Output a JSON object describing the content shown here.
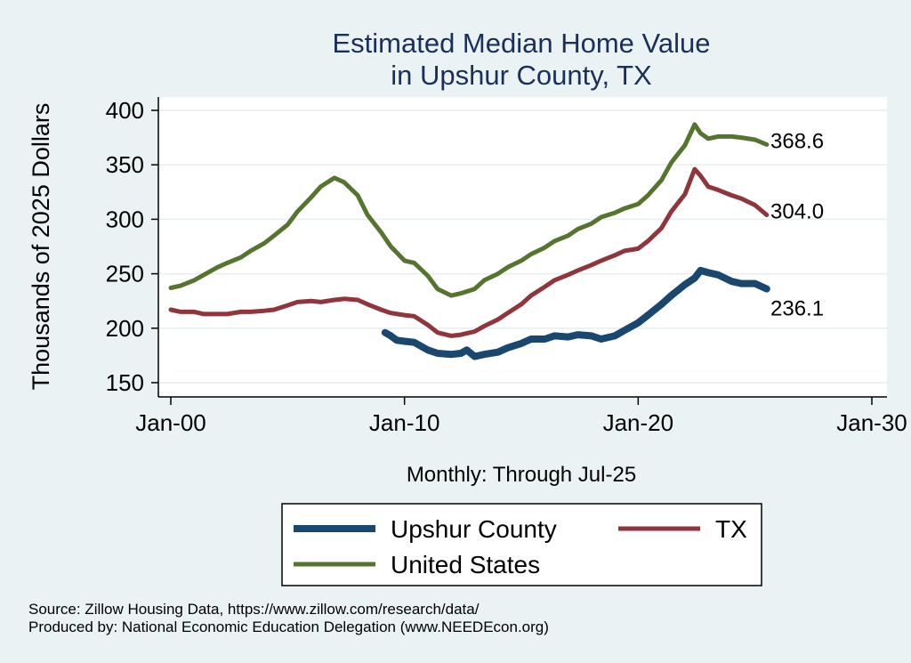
{
  "chart_data": {
    "type": "line",
    "title": [
      "Estimated Median Home Value",
      "in Upshur County, TX"
    ],
    "xlabel": "Monthly: Through Jul-25",
    "ylabel": "Thousands of 2025 Dollars",
    "x_ticks": [
      {
        "label": "Jan-00",
        "value": "2000-01"
      },
      {
        "label": "Jan-10",
        "value": "2010-01"
      },
      {
        "label": "Jan-20",
        "value": "2020-01"
      },
      {
        "label": "Jan-30",
        "value": "2030-01"
      }
    ],
    "y_ticks": [
      150,
      200,
      250,
      300,
      350,
      400
    ],
    "ylim": [
      140,
      410
    ],
    "xlim": [
      "2000-01",
      "2030-01"
    ],
    "grid": true,
    "legend_position": "bottom",
    "series": [
      {
        "name": "Upshur County",
        "color": "#1a476f",
        "last_label": "236.1",
        "points": [
          [
            "2009-03",
            196
          ],
          [
            "2009-06",
            193
          ],
          [
            "2009-09",
            189
          ],
          [
            "2010-01",
            188
          ],
          [
            "2010-06",
            187
          ],
          [
            "2011-01",
            180
          ],
          [
            "2011-06",
            177
          ],
          [
            "2012-01",
            176
          ],
          [
            "2012-06",
            177
          ],
          [
            "2012-09",
            180
          ],
          [
            "2013-01",
            174
          ],
          [
            "2013-06",
            176
          ],
          [
            "2014-01",
            178
          ],
          [
            "2014-06",
            182
          ],
          [
            "2015-01",
            186
          ],
          [
            "2015-06",
            190
          ],
          [
            "2016-01",
            190
          ],
          [
            "2016-06",
            193
          ],
          [
            "2017-01",
            192
          ],
          [
            "2017-06",
            194
          ],
          [
            "2018-01",
            193
          ],
          [
            "2018-06",
            190
          ],
          [
            "2019-01",
            193
          ],
          [
            "2019-06",
            198
          ],
          [
            "2020-01",
            205
          ],
          [
            "2020-06",
            212
          ],
          [
            "2021-01",
            222
          ],
          [
            "2021-06",
            230
          ],
          [
            "2022-01",
            240
          ],
          [
            "2022-06",
            246
          ],
          [
            "2022-09",
            253
          ],
          [
            "2023-01",
            251
          ],
          [
            "2023-06",
            249
          ],
          [
            "2024-01",
            243
          ],
          [
            "2024-06",
            241
          ],
          [
            "2025-01",
            241
          ],
          [
            "2025-07",
            236.1
          ]
        ]
      },
      {
        "name": "TX",
        "color": "#90353b",
        "last_label": "304.0",
        "points": [
          [
            "2000-01",
            217
          ],
          [
            "2000-06",
            215
          ],
          [
            "2001-01",
            215
          ],
          [
            "2001-06",
            213
          ],
          [
            "2002-01",
            213
          ],
          [
            "2002-06",
            213
          ],
          [
            "2003-01",
            215
          ],
          [
            "2003-06",
            215
          ],
          [
            "2004-01",
            216
          ],
          [
            "2004-06",
            217
          ],
          [
            "2005-01",
            221
          ],
          [
            "2005-06",
            224
          ],
          [
            "2006-01",
            225
          ],
          [
            "2006-06",
            224
          ],
          [
            "2007-01",
            226
          ],
          [
            "2007-06",
            227
          ],
          [
            "2008-01",
            226
          ],
          [
            "2008-06",
            222
          ],
          [
            "2009-01",
            217
          ],
          [
            "2009-06",
            214
          ],
          [
            "2010-01",
            212
          ],
          [
            "2010-06",
            211
          ],
          [
            "2011-01",
            203
          ],
          [
            "2011-06",
            196
          ],
          [
            "2012-01",
            193
          ],
          [
            "2012-06",
            194
          ],
          [
            "2013-01",
            197
          ],
          [
            "2013-06",
            202
          ],
          [
            "2014-01",
            208
          ],
          [
            "2014-06",
            214
          ],
          [
            "2015-01",
            222
          ],
          [
            "2015-06",
            230
          ],
          [
            "2016-01",
            238
          ],
          [
            "2016-06",
            244
          ],
          [
            "2017-01",
            249
          ],
          [
            "2017-06",
            253
          ],
          [
            "2018-01",
            258
          ],
          [
            "2018-06",
            262
          ],
          [
            "2019-01",
            267
          ],
          [
            "2019-06",
            271
          ],
          [
            "2020-01",
            273
          ],
          [
            "2020-06",
            280
          ],
          [
            "2021-01",
            292
          ],
          [
            "2021-06",
            307
          ],
          [
            "2022-01",
            323
          ],
          [
            "2022-06",
            346
          ],
          [
            "2022-09",
            340
          ],
          [
            "2023-01",
            330
          ],
          [
            "2023-06",
            327
          ],
          [
            "2024-01",
            322
          ],
          [
            "2024-06",
            319
          ],
          [
            "2025-01",
            313
          ],
          [
            "2025-07",
            304.0
          ]
        ]
      },
      {
        "name": "United States",
        "color": "#55752f",
        "last_label": "368.6",
        "points": [
          [
            "2000-01",
            237
          ],
          [
            "2000-06",
            239
          ],
          [
            "2001-01",
            244
          ],
          [
            "2001-06",
            249
          ],
          [
            "2002-01",
            256
          ],
          [
            "2002-06",
            260
          ],
          [
            "2003-01",
            265
          ],
          [
            "2003-06",
            271
          ],
          [
            "2004-01",
            278
          ],
          [
            "2004-06",
            285
          ],
          [
            "2005-01",
            295
          ],
          [
            "2005-06",
            307
          ],
          [
            "2006-01",
            320
          ],
          [
            "2006-06",
            330
          ],
          [
            "2007-01",
            338
          ],
          [
            "2007-06",
            334
          ],
          [
            "2008-01",
            322
          ],
          [
            "2008-06",
            304
          ],
          [
            "2009-01",
            288
          ],
          [
            "2009-06",
            275
          ],
          [
            "2010-01",
            262
          ],
          [
            "2010-06",
            260
          ],
          [
            "2011-01",
            248
          ],
          [
            "2011-06",
            236
          ],
          [
            "2012-01",
            230
          ],
          [
            "2012-06",
            232
          ],
          [
            "2013-01",
            236
          ],
          [
            "2013-06",
            244
          ],
          [
            "2014-01",
            250
          ],
          [
            "2014-06",
            256
          ],
          [
            "2015-01",
            262
          ],
          [
            "2015-06",
            268
          ],
          [
            "2016-01",
            274
          ],
          [
            "2016-06",
            280
          ],
          [
            "2017-01",
            285
          ],
          [
            "2017-06",
            291
          ],
          [
            "2018-01",
            296
          ],
          [
            "2018-06",
            302
          ],
          [
            "2019-01",
            306
          ],
          [
            "2019-06",
            310
          ],
          [
            "2020-01",
            314
          ],
          [
            "2020-06",
            322
          ],
          [
            "2021-01",
            336
          ],
          [
            "2021-06",
            352
          ],
          [
            "2022-01",
            368
          ],
          [
            "2022-06",
            387
          ],
          [
            "2022-09",
            379
          ],
          [
            "2023-01",
            374
          ],
          [
            "2023-06",
            376
          ],
          [
            "2024-01",
            376
          ],
          [
            "2024-06",
            375
          ],
          [
            "2025-01",
            373
          ],
          [
            "2025-07",
            368.6
          ]
        ]
      }
    ],
    "legend": [
      {
        "label": "Upshur County",
        "color": "#1a476f",
        "width": 8
      },
      {
        "label": "TX",
        "color": "#90353b",
        "width": 5
      },
      {
        "label": "United States",
        "color": "#55752f",
        "width": 5
      }
    ]
  },
  "notes": {
    "source": "Source: Zillow Housing Data, https://www.zillow.com/research/data/",
    "produced": "Produced by: National Economic Education Delegation (www.NEEDEcon.org)"
  }
}
